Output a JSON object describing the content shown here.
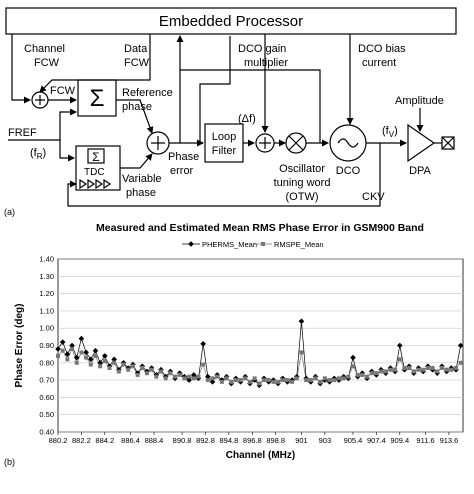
{
  "panel_labels": {
    "a": "(a)",
    "b": "(b)"
  },
  "diagram": {
    "processor": "Embedded Processor",
    "channel_fcw": [
      "Channel",
      "FCW"
    ],
    "data_fcw": [
      "Data",
      "FCW"
    ],
    "dco_gain": [
      "DCO gain",
      "multiplier"
    ],
    "dco_bias": [
      "DCO bias",
      "current"
    ],
    "fcw": "FCW",
    "reference_phase": [
      "Reference",
      "phase"
    ],
    "delta_f": "(Δf)",
    "amplitude": "Amplitude",
    "fref": "FREF",
    "fr": [
      "(f",
      "R",
      ")"
    ],
    "sigma": "Σ",
    "tdc_sigma": "Σ",
    "tdc": "TDC",
    "variable_phase": [
      "Variable",
      "phase"
    ],
    "phase_error": [
      "Phase",
      "error"
    ],
    "loop_filter": [
      "Loop",
      "Filter"
    ],
    "otw": [
      "Oscillator",
      "tuning word",
      "(OTW)"
    ],
    "dco": "DCO",
    "fv": [
      "(f",
      "V",
      ")"
    ],
    "dpa": "DPA",
    "ckv": "CKV"
  },
  "chart_data": {
    "type": "line",
    "title": "Measured and Estimated Mean RMS Phase Error in GSM900 Band",
    "x_label": "Channel (MHz)",
    "y_label": "Phase Error (deg)",
    "legend": "top",
    "grid": true,
    "xlim": [
      880.2,
      914.8
    ],
    "ylim": [
      0.4,
      1.4
    ],
    "xticks": [
      880.2,
      882.2,
      884.2,
      886.4,
      888.4,
      890.8,
      892.8,
      894.8,
      896.8,
      898.8,
      901,
      903,
      905.4,
      907.4,
      909.4,
      911.6,
      913.6
    ],
    "yticks": [
      {
        "value": 0.4,
        "label": "0.40"
      },
      {
        "value": 0.5,
        "label": "0.50"
      },
      {
        "value": 0.6,
        "label": "0.60"
      },
      {
        "value": 0.7,
        "label": "0.70"
      },
      {
        "value": 0.8,
        "label": "0.80"
      },
      {
        "value": 0.9,
        "label": "0.90"
      },
      {
        "value": 1.0,
        "label": "1.00"
      },
      {
        "value": 1.1,
        "label": "1.10"
      },
      {
        "value": 1.2,
        "label": "1.20"
      },
      {
        "value": 1.3,
        "label": "1.30"
      },
      {
        "value": 1.4,
        "label": "1.40"
      }
    ],
    "x": [
      880.2,
      880.6,
      881,
      881.4,
      881.8,
      882.2,
      882.6,
      883,
      883.4,
      883.8,
      884.2,
      884.6,
      885,
      885.4,
      885.8,
      886.2,
      886.6,
      887,
      887.4,
      887.8,
      888.2,
      888.6,
      889,
      889.4,
      889.8,
      890.2,
      890.6,
      891,
      891.4,
      891.8,
      892.2,
      892.6,
      893,
      893.4,
      893.8,
      894.2,
      894.6,
      895,
      895.4,
      895.8,
      896.2,
      896.6,
      897,
      897.4,
      897.8,
      898.2,
      898.6,
      899,
      899.4,
      899.8,
      900.2,
      900.6,
      901,
      901.4,
      901.8,
      902.2,
      902.6,
      903,
      903.4,
      903.8,
      904.2,
      904.6,
      905,
      905.4,
      905.8,
      906.2,
      906.6,
      907,
      907.4,
      907.8,
      908.2,
      908.6,
      909,
      909.4,
      909.8,
      910.2,
      910.6,
      911,
      911.4,
      911.8,
      912.2,
      912.6,
      913,
      913.4,
      913.8,
      914.2,
      914.6
    ],
    "series": [
      {
        "name": "PHERMS_Mean",
        "color": "#000000",
        "marker": "diamond",
        "values": [
          0.88,
          0.92,
          0.85,
          0.9,
          0.83,
          0.94,
          0.86,
          0.82,
          0.87,
          0.8,
          0.84,
          0.78,
          0.82,
          0.76,
          0.8,
          0.77,
          0.79,
          0.74,
          0.78,
          0.75,
          0.77,
          0.73,
          0.76,
          0.72,
          0.75,
          0.71,
          0.74,
          0.72,
          0.7,
          0.73,
          0.71,
          0.91,
          0.72,
          0.69,
          0.73,
          0.7,
          0.72,
          0.68,
          0.71,
          0.69,
          0.72,
          0.68,
          0.7,
          0.67,
          0.71,
          0.69,
          0.7,
          0.68,
          0.71,
          0.69,
          0.7,
          0.72,
          1.04,
          0.71,
          0.69,
          0.72,
          0.68,
          0.7,
          0.69,
          0.71,
          0.7,
          0.72,
          0.71,
          0.83,
          0.72,
          0.74,
          0.71,
          0.75,
          0.73,
          0.76,
          0.74,
          0.77,
          0.75,
          0.9,
          0.76,
          0.78,
          0.74,
          0.77,
          0.75,
          0.78,
          0.76,
          0.74,
          0.78,
          0.75,
          0.77,
          0.76,
          0.9
        ]
      },
      {
        "name": "RMSPE_Mean",
        "color": "#777777",
        "marker": "square",
        "values": [
          0.84,
          0.87,
          0.82,
          0.88,
          0.8,
          0.86,
          0.83,
          0.79,
          0.84,
          0.78,
          0.81,
          0.77,
          0.8,
          0.75,
          0.79,
          0.76,
          0.78,
          0.73,
          0.77,
          0.74,
          0.76,
          0.72,
          0.75,
          0.71,
          0.74,
          0.72,
          0.73,
          0.71,
          0.72,
          0.71,
          0.72,
          0.79,
          0.7,
          0.71,
          0.72,
          0.69,
          0.71,
          0.69,
          0.7,
          0.7,
          0.71,
          0.69,
          0.71,
          0.68,
          0.7,
          0.7,
          0.69,
          0.69,
          0.7,
          0.7,
          0.69,
          0.71,
          0.86,
          0.7,
          0.7,
          0.71,
          0.69,
          0.71,
          0.7,
          0.7,
          0.71,
          0.71,
          0.72,
          0.78,
          0.73,
          0.73,
          0.72,
          0.74,
          0.74,
          0.75,
          0.75,
          0.76,
          0.76,
          0.82,
          0.77,
          0.77,
          0.75,
          0.76,
          0.76,
          0.77,
          0.77,
          0.75,
          0.77,
          0.76,
          0.76,
          0.77,
          0.8
        ]
      }
    ]
  }
}
